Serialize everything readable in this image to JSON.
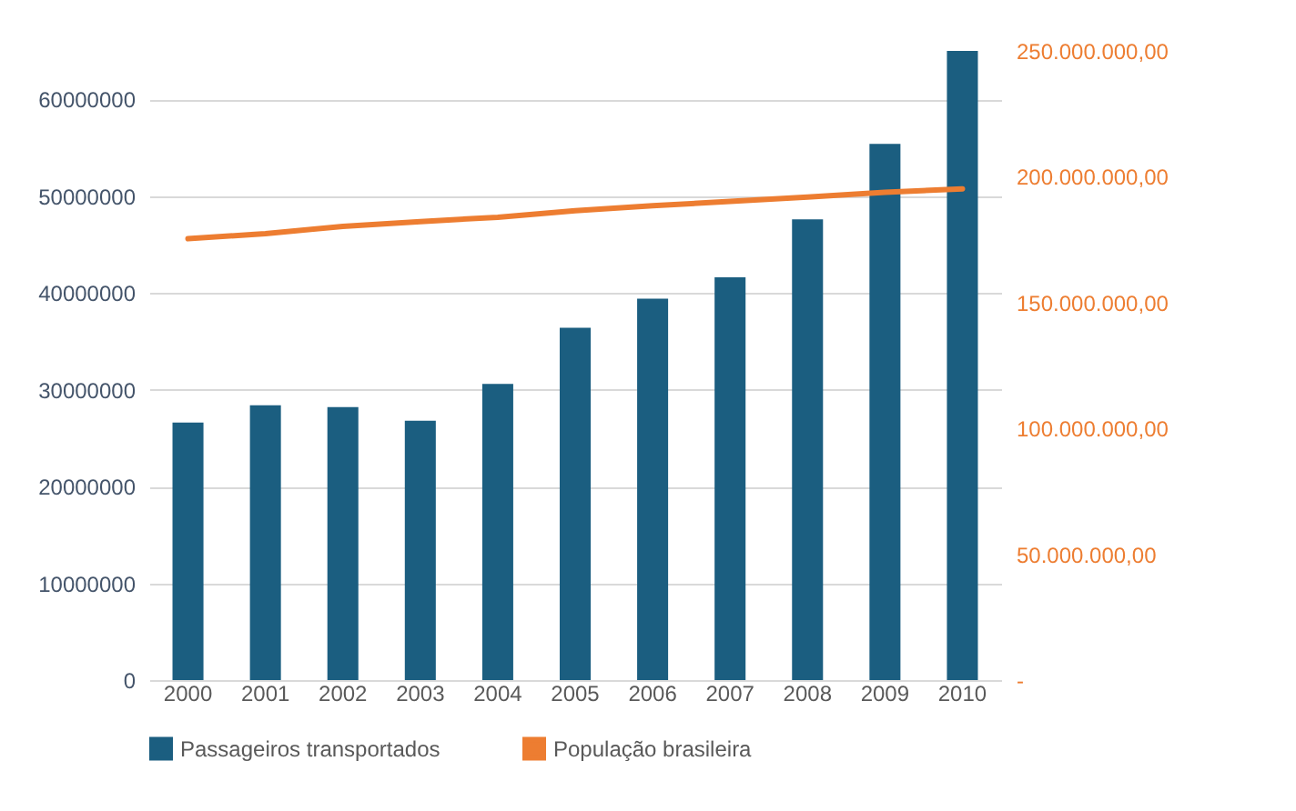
{
  "chart_data": {
    "type": "bar",
    "categories": [
      "2000",
      "2001",
      "2002",
      "2003",
      "2004",
      "2005",
      "2006",
      "2007",
      "2008",
      "2009",
      "2010"
    ],
    "series": [
      {
        "name": "Passageiros transportados",
        "color": "#1b5e80",
        "values": [
          26600000,
          28400000,
          28200000,
          26800000,
          30600000,
          36400000,
          39400000,
          41600000,
          47600000,
          55400000,
          65000000
        ]
      },
      {
        "name": "População brasileira",
        "type": "line",
        "axis": "y2",
        "color": "#ed7d31",
        "values": [
          175400000,
          177400000,
          180300000,
          182200000,
          183900000,
          186500000,
          188500000,
          190200000,
          191900000,
          193800000,
          195200000
        ]
      }
    ],
    "ylim": [
      0,
      65000000
    ],
    "yticks": [
      0,
      10000000,
      20000000,
      30000000,
      40000000,
      50000000,
      60000000
    ],
    "y2lim": [
      0,
      250000000
    ],
    "y2ticks": [
      {
        "value": 0,
        "label": "-"
      },
      {
        "value": 50000000,
        "label": "50.000.000,00"
      },
      {
        "value": 100000000,
        "label": "100.000.000,00"
      },
      {
        "value": 150000000,
        "label": "150.000.000,00"
      },
      {
        "value": 200000000,
        "label": "200.000.000,00"
      },
      {
        "value": 250000000,
        "label": "250.000.000,00"
      }
    ],
    "grid": "y",
    "legend": "bottom"
  }
}
